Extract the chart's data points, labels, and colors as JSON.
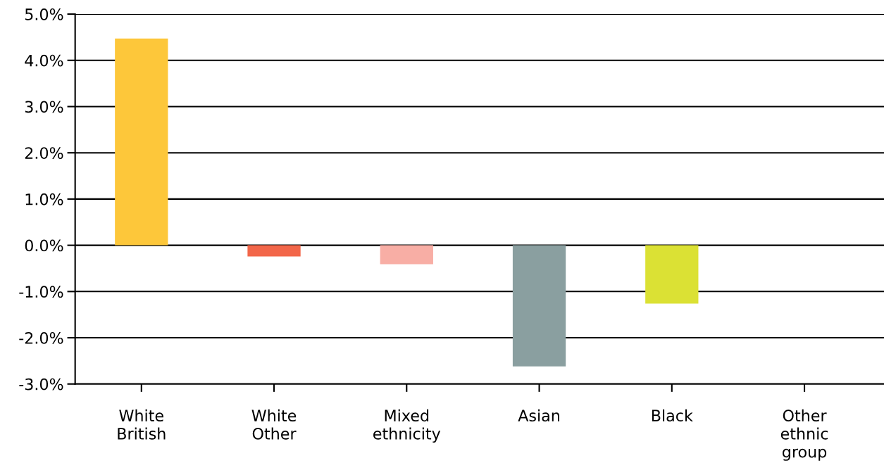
{
  "chart_data": {
    "type": "bar",
    "categories": [
      "White\nBritish",
      "White\nOther",
      "Mixed\nethnicity",
      "Asian",
      "Black",
      "Other\nethnic\ngroup"
    ],
    "values": [
      4.47,
      -0.24,
      -0.41,
      -2.62,
      -1.26,
      null
    ],
    "colors": [
      "#fdc73a",
      "#f26649",
      "#f8aea5",
      "#8a9fa0",
      "#dbe134",
      "#8a9fa0"
    ],
    "ylim": [
      -3.0,
      5.0
    ],
    "yticks": [
      {
        "value": -3,
        "label": "-3.0%"
      },
      {
        "value": -2,
        "label": "-2.0%"
      },
      {
        "value": -1,
        "label": "-1.0%"
      },
      {
        "value": 0,
        "label": "0.0%"
      },
      {
        "value": 1,
        "label": "1.0%"
      },
      {
        "value": 2,
        "label": "2.0%"
      },
      {
        "value": 3,
        "label": "3.0%"
      },
      {
        "value": 4,
        "label": "4.0%"
      },
      {
        "value": 5,
        "label": "5.0%"
      }
    ],
    "grid": "y",
    "legend": false
  }
}
